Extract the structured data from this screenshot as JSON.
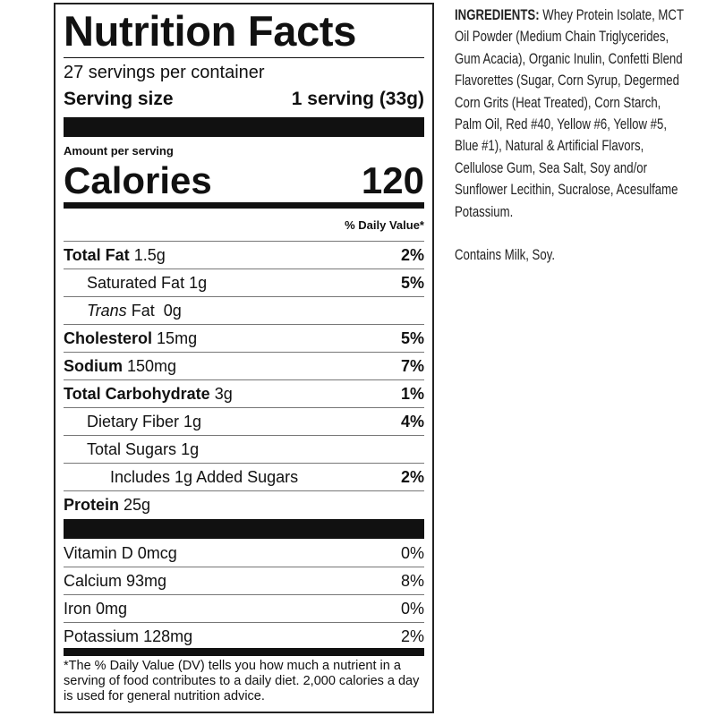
{
  "label": {
    "title": "Nutrition Facts",
    "servings_per_container": "27 servings per container",
    "serving_size_label": "Serving size",
    "serving_size_value": "1 serving (33g)",
    "amount_per_serving": "Amount per serving",
    "calories_label": "Calories",
    "calories_value": "120",
    "daily_value_header": "% Daily Value*",
    "nutrients": [
      {
        "name": "Total Fat",
        "amount": "1.5g",
        "dv": "2%"
      },
      {
        "name": "Saturated Fat",
        "amount": "1g",
        "dv": "5%"
      },
      {
        "name": "Trans",
        "name_suffix": "Fat",
        "amount": "0g",
        "dv": ""
      },
      {
        "name": "Cholesterol",
        "amount": "15mg",
        "dv": "5%"
      },
      {
        "name": "Sodium",
        "amount": "150mg",
        "dv": "7%"
      },
      {
        "name": "Total Carbohydrate",
        "amount": "3g",
        "dv": "1%"
      },
      {
        "name": "Dietary Fiber",
        "amount": "1g",
        "dv": "4%"
      },
      {
        "name": "Total Sugars",
        "amount": "1g",
        "dv": ""
      },
      {
        "name": "Includes 1g Added Sugars",
        "amount": "",
        "dv": "2%"
      },
      {
        "name": "Protein",
        "amount": "25g",
        "dv": ""
      }
    ],
    "vitamins": [
      {
        "name": "Vitamin D",
        "amount": "0mcg",
        "dv": "0%"
      },
      {
        "name": "Calcium",
        "amount": "93mg",
        "dv": "8%"
      },
      {
        "name": "Iron",
        "amount": "0mg",
        "dv": "0%"
      },
      {
        "name": "Potassium",
        "amount": "128mg",
        "dv": "2%"
      }
    ],
    "footnote": "*The % Daily Value (DV) tells you how much a nutrient in a serving of food contributes to a daily diet. 2,000 calories a day is used for general nutrition advice."
  },
  "ingredients": {
    "heading": "INGREDIENTS:",
    "text": "Whey Protein Isolate, MCT Oil Powder (Medium Chain Triglycerides, Gum Acacia), Organic Inulin, Confetti Blend Flavorettes (Sugar, Corn Syrup, Degermed Corn Grits (Heat Treated), Corn Starch, Palm Oil, Red #40, Yellow #6, Yellow #5, Blue #1), Natural & Artificial Flavors, Cellulose Gum, Sea Salt, Soy and/or Sunflower Lecithin, Sucralose, Acesulfame Potassium.",
    "allergens": "Contains Milk, Soy."
  }
}
